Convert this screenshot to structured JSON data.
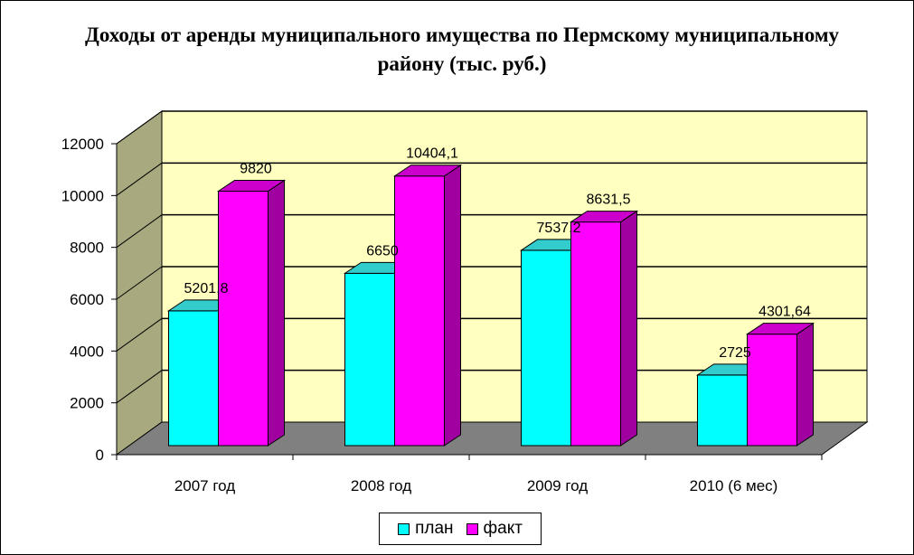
{
  "chart_data": {
    "type": "bar",
    "title": "Доходы от аренды муниципального имущества по Пермскому муниципальному району (тыс. руб.)",
    "categories": [
      "2007 год",
      "2008 год",
      "2009 год",
      "2010 (6 мес)"
    ],
    "series": [
      {
        "name": "план",
        "values": [
          5201.8,
          6650,
          7537.2,
          2725
        ],
        "labels": [
          "5201,8",
          "6650",
          "7537,2",
          "2725"
        ],
        "color": "#00FFFF",
        "side_color": "#00A8A8",
        "top_color": "#33CCCC"
      },
      {
        "name": "факт",
        "values": [
          9820,
          10404.1,
          8631.5,
          4301.64
        ],
        "labels": [
          "9820",
          "10404,1",
          "8631,5",
          "4301,64"
        ],
        "color": "#FF00FF",
        "side_color": "#A000A0",
        "top_color": "#CC00CC"
      }
    ],
    "yticks": [
      "0",
      "2000",
      "4000",
      "6000",
      "8000",
      "10000",
      "12000"
    ],
    "ylim": [
      0,
      12000
    ],
    "grid": true,
    "legend_position": "bottom",
    "wall_color": "#FFFFC0",
    "side_wall_color": "#A9A980",
    "floor_color": "#808080"
  }
}
